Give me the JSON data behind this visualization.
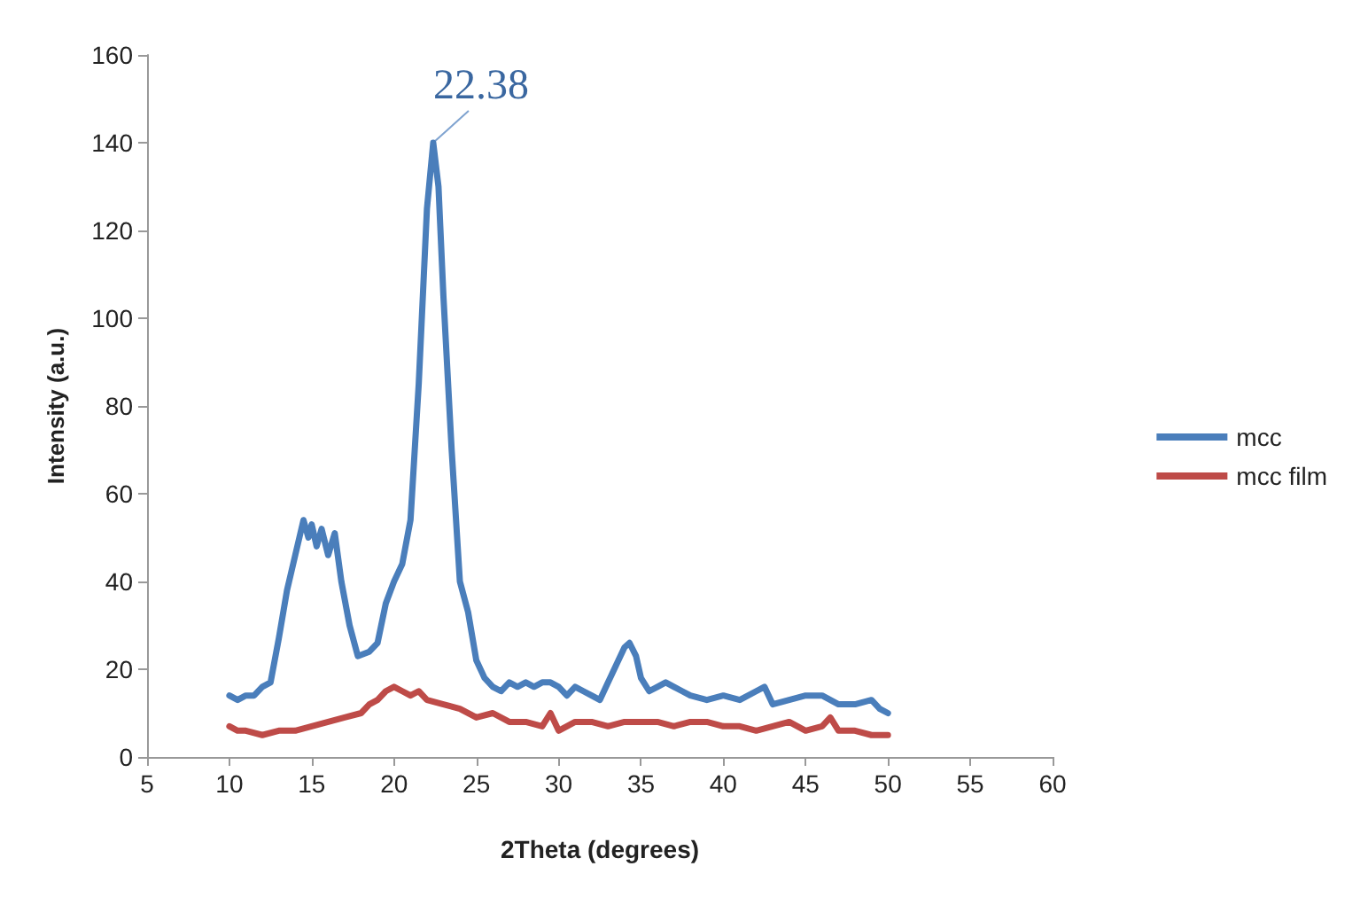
{
  "chart_data": {
    "type": "line",
    "xlabel": "2Theta (degrees)",
    "ylabel": "Intensity (a.u.)",
    "xlim": [
      5,
      60
    ],
    "xticks": [
      5,
      10,
      15,
      20,
      25,
      30,
      35,
      40,
      45,
      50,
      55,
      60
    ],
    "ylim": [
      0,
      160
    ],
    "yticks": [
      0,
      20,
      40,
      60,
      80,
      100,
      120,
      140,
      160
    ],
    "grid": false,
    "legend": "right",
    "marker": "none",
    "line_style": "solid",
    "annotations": [
      {
        "text": "22.38",
        "x": 22.38,
        "y": 140
      }
    ],
    "series": [
      {
        "name": "mcc",
        "color": "#4a7ebb",
        "x": [
          10,
          10.5,
          11,
          11.5,
          12,
          12.5,
          13,
          13.5,
          14,
          14.5,
          14.8,
          15,
          15.3,
          15.6,
          16,
          16.4,
          16.8,
          17.3,
          17.8,
          18.5,
          19,
          19.5,
          20,
          20.5,
          21,
          21.5,
          22,
          22.38,
          22.7,
          23,
          23.5,
          24,
          24.5,
          25,
          25.5,
          26,
          26.5,
          27,
          27.5,
          28,
          28.5,
          29,
          29.5,
          30,
          30.5,
          31,
          31.5,
          32,
          32.5,
          33,
          33.5,
          34,
          34.3,
          34.7,
          35,
          35.5,
          36,
          36.5,
          37,
          37.5,
          38,
          39,
          40,
          41,
          42,
          42.5,
          43,
          44,
          45,
          46,
          47,
          48,
          49,
          49.5,
          50
        ],
        "values": [
          14,
          13,
          14,
          14,
          16,
          17,
          27,
          38,
          46,
          54,
          50,
          53,
          48,
          52,
          46,
          51,
          40,
          30,
          23,
          24,
          26,
          35,
          40,
          44,
          54,
          85,
          125,
          140,
          130,
          105,
          70,
          40,
          33,
          22,
          18,
          16,
          15,
          17,
          16,
          17,
          16,
          17,
          17,
          16,
          14,
          16,
          15,
          14,
          13,
          17,
          21,
          25,
          26,
          23,
          18,
          15,
          16,
          17,
          16,
          15,
          14,
          13,
          14,
          13,
          15,
          16,
          12,
          13,
          14,
          14,
          12,
          12,
          13,
          11,
          10
        ]
      },
      {
        "name": "mcc film",
        "color": "#be4b48",
        "x": [
          10,
          10.5,
          11,
          12,
          13,
          14,
          15,
          16,
          17,
          18,
          18.5,
          19,
          19.5,
          20,
          20.5,
          21,
          21.5,
          22,
          23,
          24,
          25,
          26,
          27,
          28,
          29,
          29.5,
          30,
          31,
          32,
          33,
          34,
          35,
          36,
          37,
          38,
          39,
          40,
          41,
          42,
          43,
          44,
          45,
          46,
          46.5,
          47,
          48,
          49,
          50
        ],
        "values": [
          7,
          6,
          6,
          5,
          6,
          6,
          7,
          8,
          9,
          10,
          12,
          13,
          15,
          16,
          15,
          14,
          15,
          13,
          12,
          11,
          9,
          10,
          8,
          8,
          7,
          10,
          6,
          8,
          8,
          7,
          8,
          8,
          8,
          7,
          8,
          8,
          7,
          7,
          6,
          7,
          8,
          6,
          7,
          9,
          6,
          6,
          5,
          5
        ]
      }
    ]
  }
}
